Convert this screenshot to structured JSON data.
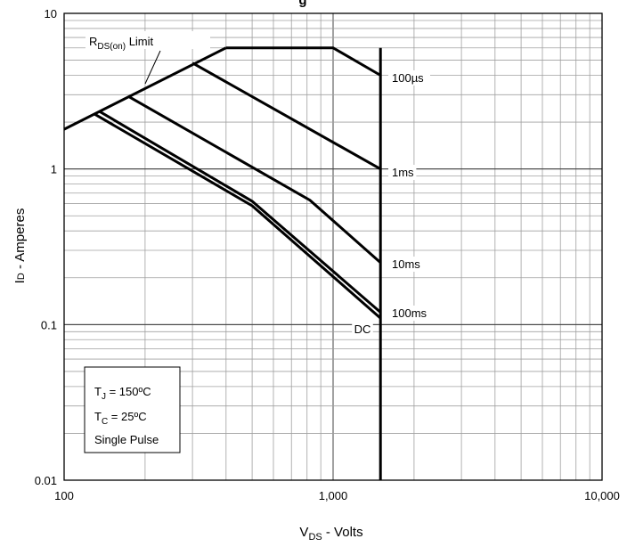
{
  "chart_data": {
    "type": "line",
    "title": "g",
    "xlabel": {
      "main": "V",
      "sub": "DS",
      "rest": " - Volts"
    },
    "ylabel": {
      "main": "I",
      "sub": "D",
      "rest": " - Amperes"
    },
    "x_scale": "log",
    "y_scale": "log",
    "xlim": [
      100,
      10000
    ],
    "ylim": [
      0.01,
      10
    ],
    "grid": true,
    "x_ticks": [
      {
        "value": 100,
        "label": "100"
      },
      {
        "value": 1000,
        "label": "1,000"
      },
      {
        "value": 10000,
        "label": "10,000"
      }
    ],
    "y_ticks": [
      {
        "value": 0.01,
        "label": "0.01"
      },
      {
        "value": 0.1,
        "label": "0.1"
      },
      {
        "value": 1,
        "label": "1"
      },
      {
        "value": 10,
        "label": "10"
      }
    ],
    "series": [
      {
        "name": "R",
        "sub": "DS(on)",
        "suffix": " Limit",
        "points": [
          [
            100,
            1.8
          ],
          [
            400,
            6
          ]
        ]
      },
      {
        "name": "100µs",
        "points": [
          [
            400,
            6
          ],
          [
            1000,
            6
          ],
          [
            1500,
            4
          ]
        ]
      },
      {
        "name": "1ms",
        "points": [
          [
            300,
            4.8
          ],
          [
            1500,
            1.0
          ]
        ]
      },
      {
        "name": "10ms",
        "points": [
          [
            175,
            2.9
          ],
          [
            820,
            0.63
          ],
          [
            1500,
            0.25
          ]
        ]
      },
      {
        "name": "100ms",
        "points": [
          [
            135,
            2.35
          ],
          [
            500,
            0.62
          ],
          [
            1500,
            0.12
          ]
        ]
      },
      {
        "name": "DC",
        "points": [
          [
            130,
            2.25
          ],
          [
            500,
            0.58
          ],
          [
            1500,
            0.11
          ]
        ]
      },
      {
        "name": "",
        "points": [
          [
            1500,
            6
          ],
          [
            1500,
            0.01
          ]
        ]
      }
    ],
    "annotations": [
      {
        "text": "T",
        "sub": "J",
        "suffix": " = 150ºC"
      },
      {
        "text": "T",
        "sub": "C",
        "suffix": " = 25ºC"
      },
      {
        "text": "Single Pulse",
        "sub": "",
        "suffix": ""
      }
    ]
  }
}
